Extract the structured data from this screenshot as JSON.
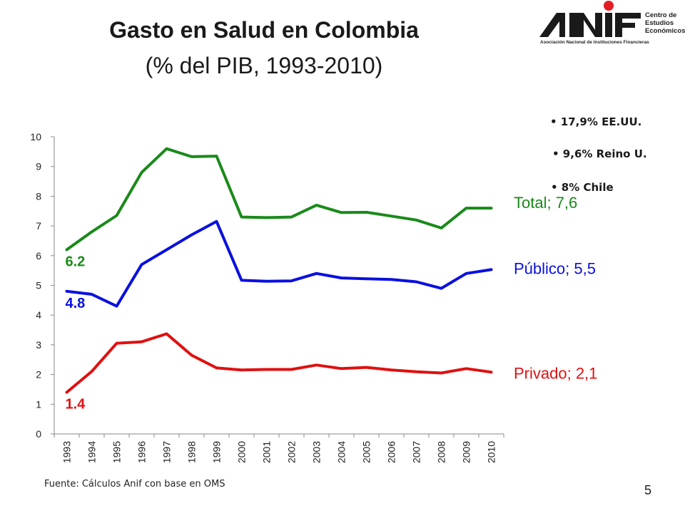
{
  "header": {
    "title": "Gasto en Salud en Colombia",
    "subtitle": "(% del PIB, 1993-2010)"
  },
  "logo": {
    "brand": "ANIF",
    "org_name": "Asociación Nacional de Instituciones Financieras",
    "center_lines": [
      "Centro de",
      "Estudios",
      "Económicos"
    ],
    "dot_color": "#e31c23"
  },
  "notes": [
    {
      "text": "• 17,9%  EE.UU."
    },
    {
      "text": "• 9,6%  Reino U."
    },
    {
      "text": "• 8% Chile"
    }
  ],
  "chart_data": {
    "type": "line",
    "categories": [
      "1993",
      "1994",
      "1995",
      "1996",
      "1997",
      "1998",
      "1999",
      "2000",
      "2001",
      "2002",
      "2003",
      "2004",
      "2005",
      "2006",
      "2007",
      "2008",
      "2009",
      "2010"
    ],
    "ylim": [
      0,
      10
    ],
    "yticks": [
      "0",
      "1",
      "2",
      "3",
      "4",
      "5",
      "6",
      "7",
      "8",
      "9",
      "10"
    ],
    "grid": false,
    "series": [
      {
        "label": "Total; 7,6",
        "start_label": "6.2",
        "color": "#1a8a1a",
        "values": [
          6.2,
          6.8,
          7.35,
          8.8,
          9.6,
          9.33,
          9.35,
          7.3,
          7.28,
          7.3,
          7.7,
          7.45,
          7.46,
          7.33,
          7.2,
          6.93,
          7.6,
          7.6
        ]
      },
      {
        "label": "Público; 5,5",
        "start_label": "4.8",
        "color": "#0a10e0",
        "values": [
          4.8,
          4.7,
          4.3,
          5.7,
          6.2,
          6.7,
          7.15,
          5.17,
          5.14,
          5.15,
          5.4,
          5.25,
          5.22,
          5.2,
          5.12,
          4.9,
          5.4,
          5.53
        ]
      },
      {
        "label": "Privado; 2,1",
        "start_label": "1.4",
        "color": "#e01010",
        "values": [
          1.4,
          2.1,
          3.05,
          3.1,
          3.37,
          2.65,
          2.22,
          2.15,
          2.17,
          2.17,
          2.32,
          2.2,
          2.24,
          2.15,
          2.09,
          2.05,
          2.2,
          2.08
        ]
      }
    ]
  },
  "footer": {
    "source": "Fuente: Cálculos Anif con base en OMS",
    "page": "5"
  }
}
